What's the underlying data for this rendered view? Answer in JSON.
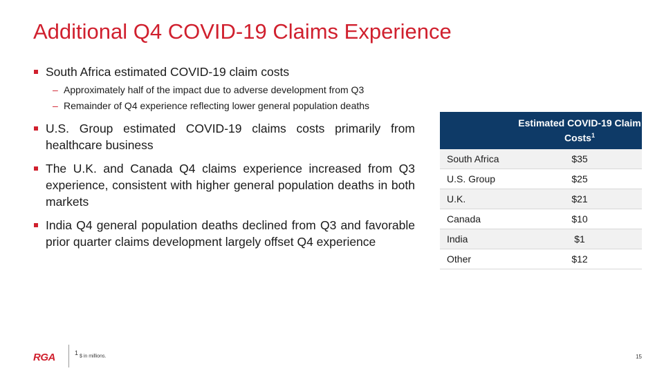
{
  "title": "Additional Q4 COVID-19 Claims Experience",
  "bullets": [
    {
      "text": "South Africa estimated COVID-19 claim costs",
      "subs": [
        "Approximately half of the impact due to adverse development from Q3",
        "Remainder of Q4 experience reflecting lower general population deaths"
      ]
    },
    {
      "text": "U.S. Group estimated COVID-19 claims costs primarily from healthcare business"
    },
    {
      "text": "The U.K. and Canada Q4 claims experience increased from Q3 experience, consistent with higher general population deaths in both markets"
    },
    {
      "text": "India Q4 general population deaths declined from Q3 and favorable prior quarter claims development largely offset Q4 experience"
    }
  ],
  "table": {
    "header": "Estimated COVID-19 Claim Costs",
    "header_sup": "1",
    "rows": [
      {
        "label": "South Africa",
        "value": "$35"
      },
      {
        "label": "U.S. Group",
        "value": "$25"
      },
      {
        "label": "U.K.",
        "value": "$21"
      },
      {
        "label": "Canada",
        "value": "$10"
      },
      {
        "label": "India",
        "value": "$1"
      },
      {
        "label": "Other",
        "value": "$12"
      }
    ]
  },
  "footer": {
    "logo": "RGA",
    "footnote_sup": "1",
    "footnote": "$ in millions.",
    "page_number": "15"
  },
  "colors": {
    "accent": "#d0202e",
    "table_header": "#0e3a67"
  }
}
